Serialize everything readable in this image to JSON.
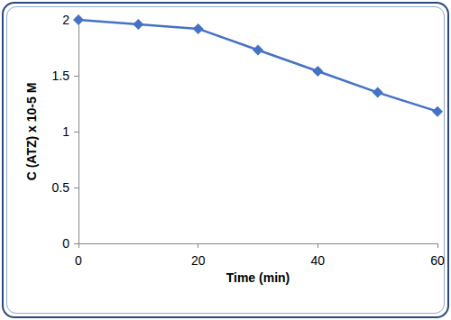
{
  "chart_data": {
    "type": "line",
    "x_label": "Time (min)",
    "y_label": "C (ATZ) x 10-5 M",
    "x": [
      0,
      10,
      20,
      30,
      40,
      50,
      60
    ],
    "values": [
      2.0,
      1.96,
      1.92,
      1.73,
      1.54,
      1.35,
      1.18
    ],
    "color": "#4472c4",
    "marker": "diamond",
    "xlim": [
      0,
      60
    ],
    "xticks": [
      0,
      20,
      40,
      60
    ],
    "ylim": [
      0,
      2
    ],
    "yticks": [
      0,
      0.5,
      1,
      1.5,
      2
    ],
    "grid": false
  }
}
